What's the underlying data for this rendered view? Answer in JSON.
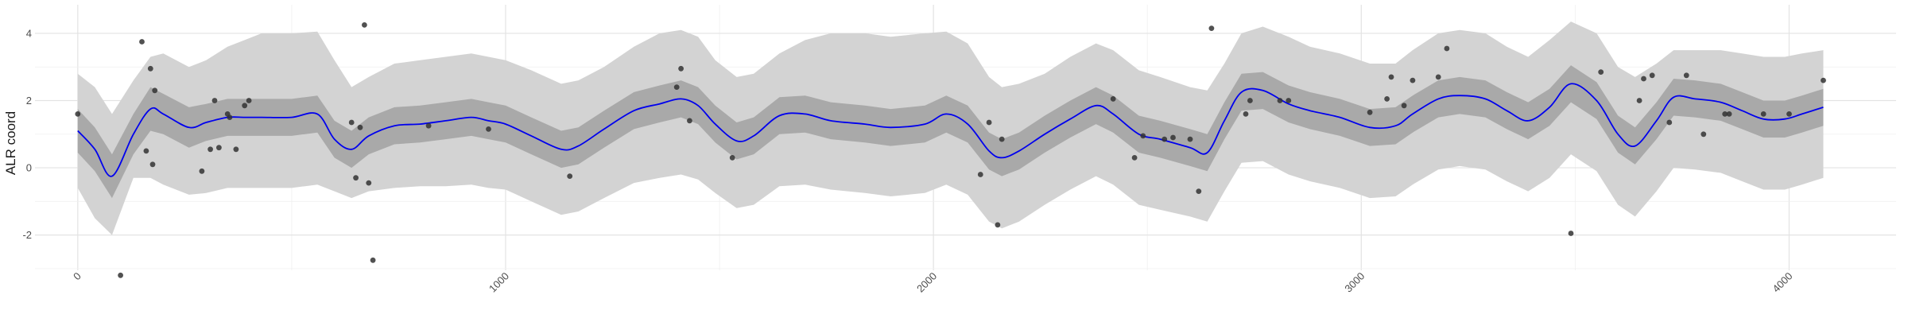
{
  "chart_data": {
    "type": "line",
    "title": "",
    "xlabel": "",
    "ylabel": "ALR coord",
    "xlim": [
      -100,
      4250
    ],
    "ylim": [
      -3.05,
      4.85
    ],
    "x_ticks": [
      0,
      1000,
      2000,
      3000,
      4000
    ],
    "x_tick_labels": [
      "0",
      "1000",
      "2000",
      "3000",
      "4000"
    ],
    "y_ticks": [
      -2,
      0,
      2,
      4
    ],
    "y_tick_labels": [
      "-2",
      "0",
      "2",
      "4"
    ],
    "grid": true,
    "legend": "none",
    "colors": {
      "mean_line": "#0000ee",
      "inner_band": "#a9a9a9",
      "outer_band": "#d3d3d3",
      "points": "#333333",
      "grid_major": "#e3e3e3",
      "grid_minor": "#f0f0f0"
    },
    "band": {
      "x": [
        0,
        40,
        80,
        130,
        170,
        200,
        260,
        300,
        350,
        390,
        430,
        500,
        560,
        600,
        640,
        680,
        740,
        800,
        860,
        920,
        960,
        1000,
        1060,
        1130,
        1170,
        1230,
        1300,
        1360,
        1410,
        1450,
        1490,
        1540,
        1580,
        1640,
        1700,
        1760,
        1840,
        1900,
        1980,
        2030,
        2080,
        2130,
        2160,
        2200,
        2260,
        2320,
        2380,
        2420,
        2480,
        2530,
        2600,
        2640,
        2680,
        2720,
        2770,
        2830,
        2880,
        2950,
        3020,
        3080,
        3120,
        3180,
        3230,
        3290,
        3340,
        3390,
        3440,
        3490,
        3550,
        3600,
        3640,
        3690,
        3730,
        3780,
        3840,
        3890,
        3940,
        3990,
        4030,
        4080
      ],
      "mean": [
        1.1,
        0.55,
        -0.25,
        1.0,
        1.75,
        1.6,
        1.2,
        1.35,
        1.5,
        1.5,
        1.5,
        1.5,
        1.6,
        0.85,
        0.55,
        0.95,
        1.25,
        1.3,
        1.4,
        1.5,
        1.4,
        1.3,
        0.95,
        0.55,
        0.65,
        1.15,
        1.7,
        1.9,
        2.05,
        1.85,
        1.3,
        0.8,
        0.95,
        1.55,
        1.6,
        1.4,
        1.3,
        1.2,
        1.3,
        1.6,
        1.3,
        0.5,
        0.3,
        0.5,
        1.0,
        1.45,
        1.85,
        1.6,
        1.0,
        0.85,
        0.6,
        0.45,
        1.4,
        2.25,
        2.3,
        1.9,
        1.7,
        1.5,
        1.2,
        1.25,
        1.6,
        2.05,
        2.15,
        2.05,
        1.7,
        1.4,
        1.8,
        2.5,
        2.0,
        1.0,
        0.65,
        1.4,
        2.1,
        2.05,
        1.95,
        1.7,
        1.45,
        1.45,
        1.6,
        1.8
      ],
      "inner_lower": [
        0.45,
        -0.1,
        -0.9,
        0.4,
        1.1,
        1.0,
        0.6,
        0.8,
        0.95,
        0.95,
        0.95,
        0.95,
        1.05,
        0.3,
        0.0,
        0.4,
        0.7,
        0.75,
        0.85,
        0.95,
        0.85,
        0.75,
        0.4,
        0.0,
        0.1,
        0.6,
        1.15,
        1.35,
        1.5,
        1.3,
        0.75,
        0.25,
        0.4,
        1.0,
        1.05,
        0.85,
        0.75,
        0.65,
        0.75,
        1.05,
        0.75,
        -0.05,
        -0.25,
        -0.05,
        0.45,
        0.9,
        1.3,
        1.05,
        0.45,
        0.3,
        0.05,
        -0.1,
        0.85,
        1.7,
        1.75,
        1.35,
        1.15,
        0.95,
        0.65,
        0.7,
        1.05,
        1.5,
        1.6,
        1.5,
        1.15,
        0.85,
        1.25,
        1.95,
        1.45,
        0.45,
        0.1,
        0.85,
        1.55,
        1.5,
        1.4,
        1.15,
        0.9,
        0.9,
        1.05,
        1.25
      ],
      "inner_upper": [
        1.75,
        1.2,
        0.4,
        1.6,
        2.4,
        2.2,
        1.8,
        1.9,
        2.05,
        2.05,
        2.05,
        2.05,
        2.15,
        1.4,
        1.1,
        1.5,
        1.8,
        1.85,
        1.95,
        2.05,
        1.95,
        1.85,
        1.5,
        1.1,
        1.2,
        1.7,
        2.25,
        2.45,
        2.6,
        2.4,
        1.85,
        1.35,
        1.5,
        2.1,
        2.15,
        1.95,
        1.85,
        1.75,
        1.85,
        2.15,
        1.85,
        1.05,
        0.85,
        1.05,
        1.55,
        2.0,
        2.4,
        2.15,
        1.55,
        1.4,
        1.15,
        1.0,
        1.95,
        2.8,
        2.85,
        2.45,
        2.25,
        2.05,
        1.75,
        1.8,
        2.15,
        2.6,
        2.7,
        2.6,
        2.25,
        1.95,
        2.35,
        3.05,
        2.55,
        1.55,
        1.2,
        1.95,
        2.65,
        2.6,
        2.5,
        2.25,
        2.0,
        2.0,
        2.15,
        2.35
      ],
      "outer_lower": [
        -0.6,
        -1.5,
        -2.0,
        -0.3,
        -0.3,
        -0.5,
        -0.8,
        -0.75,
        -0.6,
        -0.6,
        -0.6,
        -0.6,
        -0.5,
        -0.7,
        -0.9,
        -0.7,
        -0.6,
        -0.55,
        -0.55,
        -0.5,
        -0.6,
        -0.65,
        -1.0,
        -1.4,
        -1.3,
        -0.9,
        -0.45,
        -0.3,
        -0.2,
        -0.35,
        -0.75,
        -1.2,
        -1.1,
        -0.55,
        -0.5,
        -0.65,
        -0.75,
        -0.85,
        -0.75,
        -0.5,
        -0.8,
        -1.6,
        -1.8,
        -1.6,
        -1.1,
        -0.65,
        -0.25,
        -0.5,
        -1.1,
        -1.25,
        -1.45,
        -1.6,
        -0.7,
        0.15,
        0.2,
        -0.2,
        -0.4,
        -0.6,
        -0.9,
        -0.85,
        -0.5,
        -0.05,
        0.05,
        -0.05,
        -0.4,
        -0.7,
        -0.3,
        0.4,
        -0.1,
        -1.1,
        -1.45,
        -0.7,
        0.0,
        -0.05,
        -0.15,
        -0.4,
        -0.65,
        -0.65,
        -0.5,
        -0.3
      ],
      "outer_upper": [
        2.8,
        2.4,
        1.6,
        2.6,
        3.3,
        3.4,
        3.0,
        3.2,
        3.6,
        3.8,
        4.0,
        4.0,
        4.05,
        3.2,
        2.4,
        2.7,
        3.1,
        3.2,
        3.3,
        3.4,
        3.3,
        3.2,
        2.9,
        2.5,
        2.6,
        3.0,
        3.6,
        4.0,
        4.1,
        3.9,
        3.2,
        2.7,
        2.8,
        3.4,
        3.8,
        4.0,
        4.0,
        3.9,
        4.0,
        4.05,
        3.7,
        2.7,
        2.4,
        2.5,
        2.8,
        3.3,
        3.7,
        3.5,
        2.9,
        2.7,
        2.4,
        2.3,
        3.1,
        4.0,
        4.2,
        3.9,
        3.6,
        3.4,
        3.1,
        3.1,
        3.5,
        4.0,
        4.1,
        4.0,
        3.6,
        3.3,
        3.8,
        4.35,
        4.0,
        3.0,
        2.7,
        3.1,
        3.5,
        3.5,
        3.5,
        3.4,
        3.3,
        3.3,
        3.4,
        3.5
      ]
    },
    "points": {
      "x": [
        0,
        100,
        150,
        160,
        170,
        175,
        180,
        290,
        310,
        320,
        330,
        350,
        355,
        370,
        390,
        400,
        640,
        650,
        660,
        670,
        680,
        690,
        820,
        960,
        1150,
        1400,
        1410,
        1430,
        1530,
        2110,
        2130,
        2150,
        2160,
        2420,
        2470,
        2490,
        2540,
        2560,
        2600,
        2620,
        2650,
        2730,
        2740,
        2810,
        2830,
        3020,
        3060,
        3070,
        3100,
        3120,
        3180,
        3200,
        3490,
        3560,
        3650,
        3660,
        3680,
        3720,
        3760,
        3800,
        3850,
        3860,
        3940,
        4000,
        4080
      ],
      "y": [
        1.6,
        -3.2,
        3.75,
        0.5,
        2.95,
        0.1,
        2.3,
        -0.1,
        0.55,
        2.0,
        0.6,
        1.6,
        1.5,
        0.55,
        1.85,
        2.0,
        1.35,
        -0.3,
        1.2,
        4.25,
        -0.45,
        -2.75,
        1.25,
        1.15,
        -0.25,
        2.4,
        2.95,
        1.4,
        0.3,
        -0.2,
        1.35,
        -1.7,
        0.85,
        2.05,
        0.3,
        0.95,
        0.85,
        0.9,
        0.85,
        -0.7,
        4.15,
        1.6,
        2.0,
        2.0,
        2.0,
        1.65,
        2.05,
        2.7,
        1.85,
        2.6,
        2.7,
        3.55,
        -1.95,
        2.85,
        2.0,
        2.65,
        2.75,
        1.35,
        2.75,
        1.0,
        1.6,
        1.6,
        1.6,
        1.6,
        2.6
      ]
    }
  }
}
